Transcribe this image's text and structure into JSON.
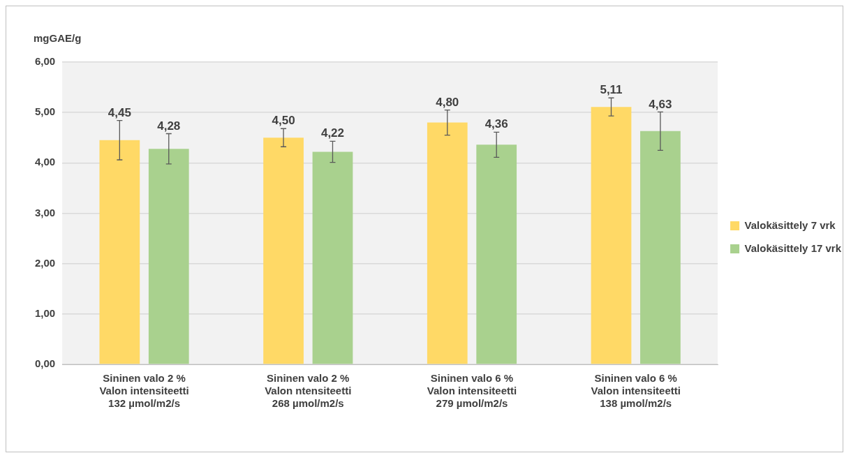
{
  "chart_data": {
    "type": "bar",
    "ylabel": "mgGAE/g",
    "categories": [
      "Sininen valo 2 %\nValon intensiteetti\n132 µmol/m2/s",
      "Sininen valo 2 %\nValon ntensiteetti\n268 µmol/m2/s",
      "Sininen valo 6 %\nValon intensiteetti\n279 µmol/m2/s",
      "Sininen valo 6 %\nValon intensiteetti\n138 µmol/m2/s"
    ],
    "series": [
      {
        "name": "Valokäsittely 7 vrk",
        "color": "#ffd966",
        "values": [
          4.45,
          4.5,
          4.8,
          5.11
        ],
        "errors": [
          0.39,
          0.18,
          0.25,
          0.18
        ],
        "value_labels": [
          "4,45",
          "4,50",
          "4,80",
          "5,11"
        ]
      },
      {
        "name": "Valokäsittely 17 vrk",
        "color": "#a9d18e",
        "values": [
          4.28,
          4.22,
          4.36,
          4.63
        ],
        "errors": [
          0.3,
          0.21,
          0.25,
          0.38
        ],
        "value_labels": [
          "4,28",
          "4,22",
          "4,36",
          "4,63"
        ]
      }
    ],
    "ylim": [
      0,
      6
    ],
    "yticks": [
      {
        "value": 0,
        "label": "0,00"
      },
      {
        "value": 1,
        "label": "1,00"
      },
      {
        "value": 2,
        "label": "2,00"
      },
      {
        "value": 3,
        "label": "3,00"
      },
      {
        "value": 4,
        "label": "4,00"
      },
      {
        "value": 5,
        "label": "5,00"
      },
      {
        "value": 6,
        "label": "6,00"
      }
    ],
    "grid": "y",
    "legend": "right"
  }
}
